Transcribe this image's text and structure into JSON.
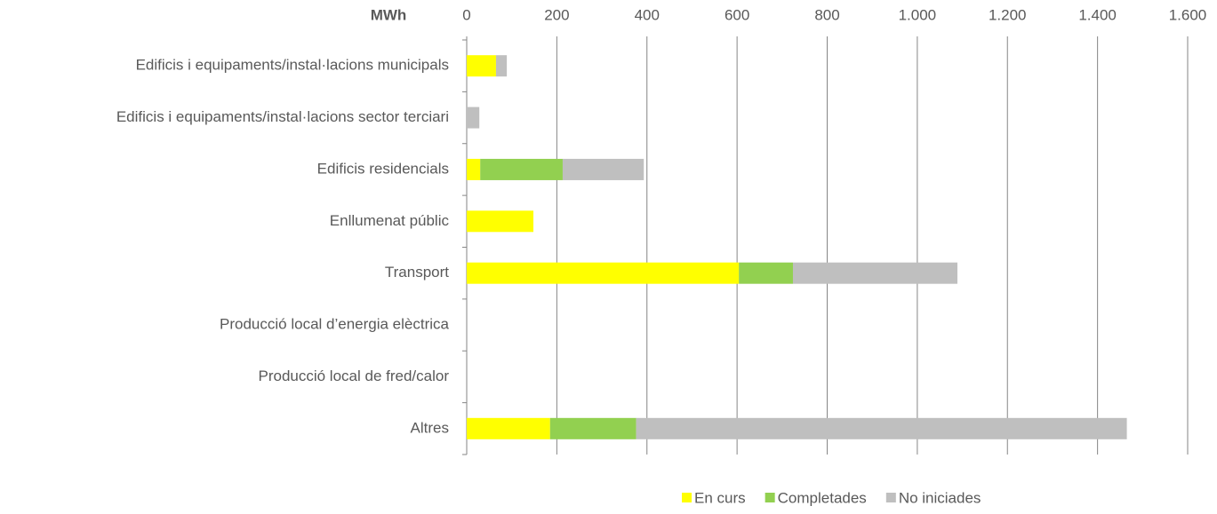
{
  "chart_data": {
    "type": "stacked_barh",
    "x_label": "MWh",
    "categories": [
      "Edificis i equipaments/instal·lacions municipals",
      "Edificis i equipaments/instal·lacions sector terciari",
      "Edificis residencials",
      "Enllumenat públic",
      "Transport",
      "Producció local d’energia elèctrica",
      "Producció local de fred/calor",
      "Altres"
    ],
    "series": [
      {
        "name": "En curs",
        "color": "#ffff00",
        "values": [
          65,
          0,
          30,
          148,
          604,
          0,
          0,
          185
        ]
      },
      {
        "name": "Completades",
        "color": "#92d050",
        "values": [
          0,
          0,
          183,
          0,
          120,
          0,
          0,
          191
        ]
      },
      {
        "name": "No iniciades",
        "color": "#bfbfbf",
        "values": [
          24,
          28,
          180,
          0,
          365,
          0,
          0,
          1089
        ]
      }
    ],
    "xlim": [
      0,
      1600
    ],
    "xticks": [
      0,
      200,
      400,
      600,
      800,
      {
        "value": 1000,
        "label": "1.000"
      },
      {
        "value": 1200,
        "label": "1.200"
      },
      {
        "value": 1400,
        "label": "1.400"
      },
      {
        "value": 1600,
        "label": "1.600"
      }
    ],
    "grid": true,
    "legend": "bottom"
  }
}
